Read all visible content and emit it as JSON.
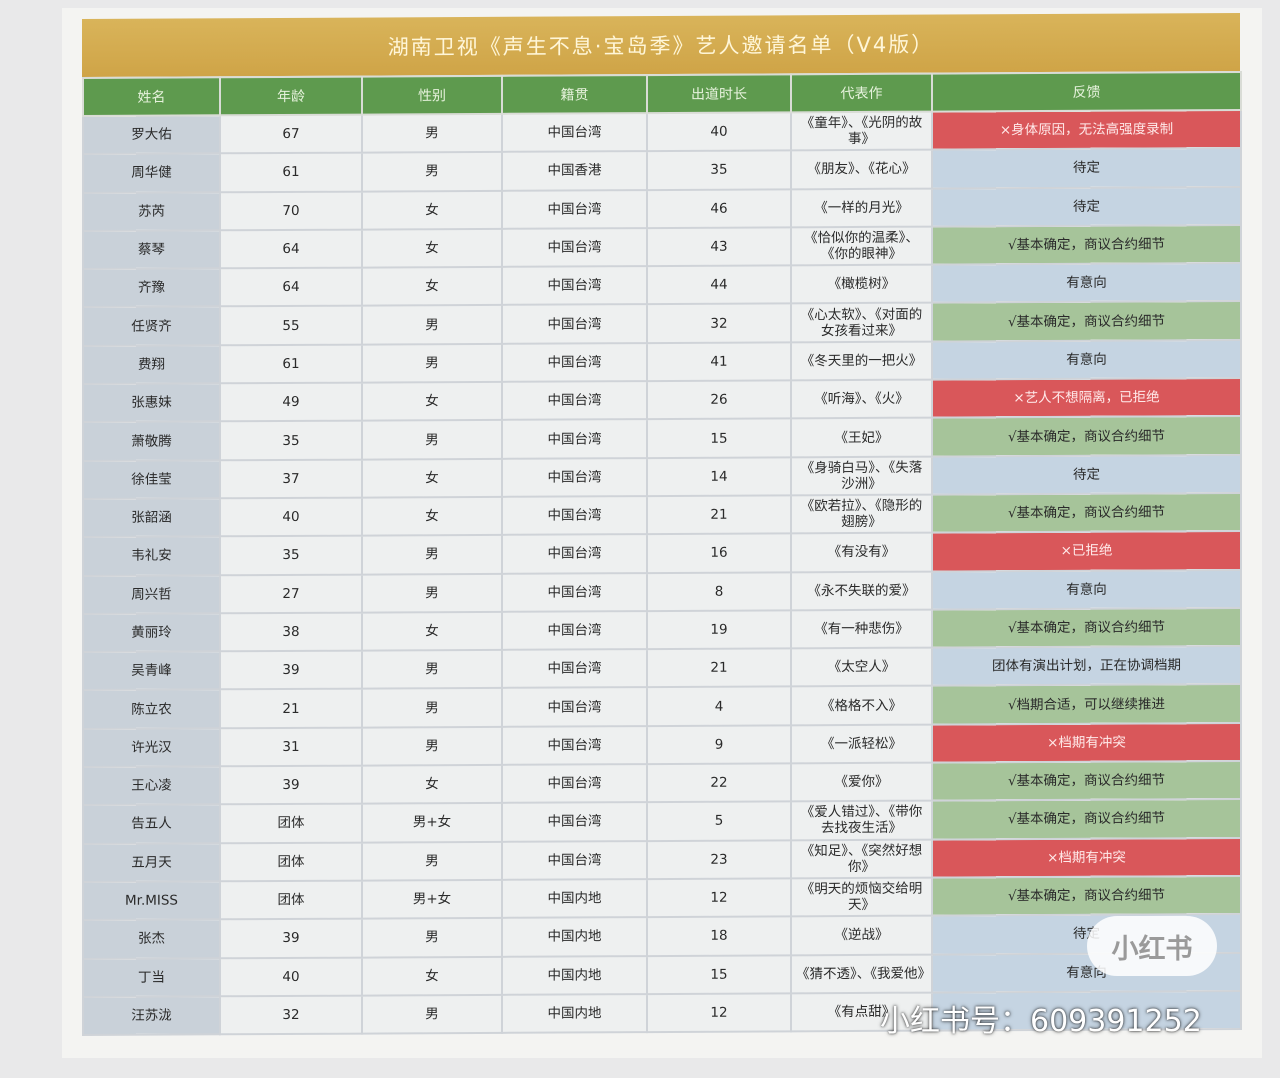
{
  "title": "湖南卫视《声生不息·宝岛季》艺人邀请名单（V4版）",
  "headers": [
    "姓名",
    "年龄",
    "性别",
    "籍贯",
    "出道时长",
    "代表作",
    "反馈"
  ],
  "rows": [
    {
      "name": "罗大佑",
      "age": "67",
      "gender": "男",
      "origin": "中国台湾",
      "years": "40",
      "works": "《童年》、《光阴的故事》",
      "feedback": "×身体原因，无法高强度录制",
      "status": "red"
    },
    {
      "name": "周华健",
      "age": "61",
      "gender": "男",
      "origin": "中国香港",
      "years": "35",
      "works": "《朋友》、《花心》",
      "feedback": "待定",
      "status": "blue"
    },
    {
      "name": "苏芮",
      "age": "70",
      "gender": "女",
      "origin": "中国台湾",
      "years": "46",
      "works": "《一样的月光》",
      "feedback": "待定",
      "status": "blue"
    },
    {
      "name": "蔡琴",
      "age": "64",
      "gender": "女",
      "origin": "中国台湾",
      "years": "43",
      "works": "《恰似你的温柔》、《你的眼神》",
      "feedback": "√基本确定，商议合约细节",
      "status": "green"
    },
    {
      "name": "齐豫",
      "age": "64",
      "gender": "女",
      "origin": "中国台湾",
      "years": "44",
      "works": "《橄榄树》",
      "feedback": "有意向",
      "status": "blue"
    },
    {
      "name": "任贤齐",
      "age": "55",
      "gender": "男",
      "origin": "中国台湾",
      "years": "32",
      "works": "《心太软》、《对面的女孩看过来》",
      "feedback": "√基本确定，商议合约细节",
      "status": "green"
    },
    {
      "name": "费翔",
      "age": "61",
      "gender": "男",
      "origin": "中国台湾",
      "years": "41",
      "works": "《冬天里的一把火》",
      "feedback": "有意向",
      "status": "blue"
    },
    {
      "name": "张惠妹",
      "age": "49",
      "gender": "女",
      "origin": "中国台湾",
      "years": "26",
      "works": "《听海》、《火》",
      "feedback": "×艺人不想隔离，已拒绝",
      "status": "red"
    },
    {
      "name": "萧敬腾",
      "age": "35",
      "gender": "男",
      "origin": "中国台湾",
      "years": "15",
      "works": "《王妃》",
      "feedback": "√基本确定，商议合约细节",
      "status": "green"
    },
    {
      "name": "徐佳莹",
      "age": "37",
      "gender": "女",
      "origin": "中国台湾",
      "years": "14",
      "works": "《身骑白马》、《失落沙洲》",
      "feedback": "待定",
      "status": "blue"
    },
    {
      "name": "张韶涵",
      "age": "40",
      "gender": "女",
      "origin": "中国台湾",
      "years": "21",
      "works": "《欧若拉》、《隐形的翅膀》",
      "feedback": "√基本确定，商议合约细节",
      "status": "green"
    },
    {
      "name": "韦礼安",
      "age": "35",
      "gender": "男",
      "origin": "中国台湾",
      "years": "16",
      "works": "《有没有》",
      "feedback": "×已拒绝",
      "status": "red"
    },
    {
      "name": "周兴哲",
      "age": "27",
      "gender": "男",
      "origin": "中国台湾",
      "years": "8",
      "works": "《永不失联的爱》",
      "feedback": "有意向",
      "status": "blue"
    },
    {
      "name": "黄丽玲",
      "age": "38",
      "gender": "女",
      "origin": "中国台湾",
      "years": "19",
      "works": "《有一种悲伤》",
      "feedback": "√基本确定，商议合约细节",
      "status": "green"
    },
    {
      "name": "吴青峰",
      "age": "39",
      "gender": "男",
      "origin": "中国台湾",
      "years": "21",
      "works": "《太空人》",
      "feedback": "团体有演出计划，正在协调档期",
      "status": "blue"
    },
    {
      "name": "陈立农",
      "age": "21",
      "gender": "男",
      "origin": "中国台湾",
      "years": "4",
      "works": "《格格不入》",
      "feedback": "√档期合适，可以继续推进",
      "status": "green"
    },
    {
      "name": "许光汉",
      "age": "31",
      "gender": "男",
      "origin": "中国台湾",
      "years": "9",
      "works": "《一派轻松》",
      "feedback": "×档期有冲突",
      "status": "red"
    },
    {
      "name": "王心凌",
      "age": "39",
      "gender": "女",
      "origin": "中国台湾",
      "years": "22",
      "works": "《爱你》",
      "feedback": "√基本确定，商议合约细节",
      "status": "green"
    },
    {
      "name": "告五人",
      "age": "团体",
      "gender": "男+女",
      "origin": "中国台湾",
      "years": "5",
      "works": "《爱人错过》、《带你去找夜生活》",
      "feedback": "√基本确定，商议合约细节",
      "status": "green"
    },
    {
      "name": "五月天",
      "age": "团体",
      "gender": "男",
      "origin": "中国台湾",
      "years": "23",
      "works": "《知足》、《突然好想你》",
      "feedback": "×档期有冲突",
      "status": "red"
    },
    {
      "name": "Mr.MISS",
      "age": "团体",
      "gender": "男+女",
      "origin": "中国内地",
      "years": "12",
      "works": "《明天的烦恼交给明天》",
      "feedback": "√基本确定，商议合约细节",
      "status": "green"
    },
    {
      "name": "张杰",
      "age": "39",
      "gender": "男",
      "origin": "中国内地",
      "years": "18",
      "works": "《逆战》",
      "feedback": "待定",
      "status": "blue"
    },
    {
      "name": "丁当",
      "age": "40",
      "gender": "女",
      "origin": "中国内地",
      "years": "15",
      "works": "《猜不透》、《我爱他》",
      "feedback": "有意向",
      "status": "blue"
    },
    {
      "name": "汪苏泷",
      "age": "32",
      "gender": "男",
      "origin": "中国内地",
      "years": "12",
      "works": "《有点甜》",
      "feedback": "",
      "status": "blue"
    }
  ],
  "watermark": {
    "brand": "小红书",
    "id_text": "小红书号：609391252"
  },
  "colors": {
    "header": "#5e9a4e",
    "title": "#d2a94c",
    "red": "#d9575a",
    "blue": "#c5d4e2",
    "green": "#a6c49a"
  }
}
